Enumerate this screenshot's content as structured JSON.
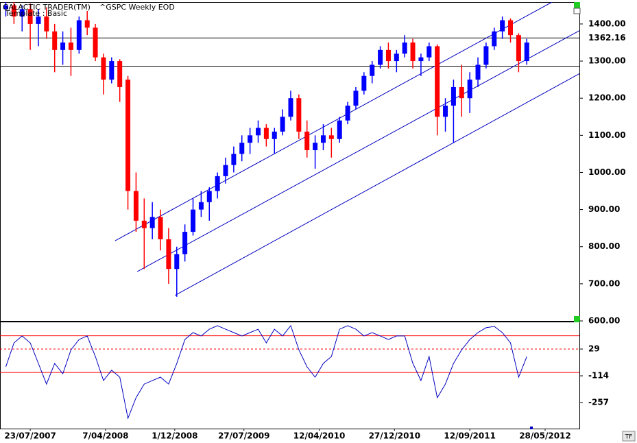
{
  "chart_data": {
    "type": "candlestick",
    "source": "GALACTIC TRADER(TM)",
    "title": "^GSPC Weekly EOD",
    "subtitle": "Template : Basic",
    "button": "TF",
    "up_color": "#0000ff",
    "down_color": "#ff0000",
    "x": [
      "30/04/2007",
      "28/05/2007",
      "25/06/2007",
      "23/07/2007",
      "20/08/2007",
      "17/09/2007",
      "15/10/2007",
      "12/11/2007",
      "10/12/2007",
      "07/01/2008",
      "04/02/2008",
      "03/03/2008",
      "31/03/2008",
      "28/04/2008",
      "26/05/2008",
      "23/06/2008",
      "21/07/2008",
      "18/08/2008",
      "15/09/2008",
      "13/10/2008",
      "10/11/2008",
      "08/12/2008",
      "05/01/2009",
      "02/02/2009",
      "02/03/2009",
      "30/03/2009",
      "27/04/2009",
      "25/05/2009",
      "22/06/2009",
      "20/07/2009",
      "17/08/2009",
      "14/09/2009",
      "12/10/2009",
      "09/11/2009",
      "07/12/2009",
      "04/01/2010",
      "01/02/2010",
      "01/03/2010",
      "29/03/2010",
      "26/04/2010",
      "24/05/2010",
      "21/06/2010",
      "19/07/2010",
      "16/08/2010",
      "13/09/2010",
      "11/10/2010",
      "08/11/2010",
      "06/12/2010",
      "03/01/2011",
      "31/01/2011",
      "28/02/2011",
      "28/03/2011",
      "25/04/2011",
      "23/05/2011",
      "20/06/2011",
      "18/07/2011",
      "15/08/2011",
      "12/09/2011",
      "10/10/2011",
      "07/11/2011",
      "05/12/2011",
      "02/01/2012",
      "30/01/2012",
      "27/02/2012",
      "26/03/2012"
    ],
    "open": [
      1440,
      1450,
      1420,
      1440,
      1400,
      1420,
      1380,
      1330,
      1350,
      1330,
      1410,
      1390,
      1310,
      1250,
      1300,
      1250,
      950,
      870,
      850,
      880,
      820,
      740,
      780,
      840,
      900,
      920,
      950,
      990,
      1020,
      1050,
      1080,
      1100,
      1120,
      1090,
      1110,
      1150,
      1200,
      1110,
      1060,
      1080,
      1100,
      1090,
      1140,
      1180,
      1220,
      1260,
      1290,
      1330,
      1300,
      1320,
      1350,
      1300,
      1310,
      1340,
      1150,
      1180,
      1230,
      1200,
      1250,
      1290,
      1340,
      1380,
      1410,
      1370,
      1300
    ],
    "high": [
      1470,
      1475,
      1450,
      1455,
      1440,
      1445,
      1400,
      1380,
      1390,
      1420,
      1435,
      1400,
      1320,
      1310,
      1305,
      1260,
      1000,
      930,
      920,
      900,
      850,
      800,
      860,
      930,
      950,
      960,
      1000,
      1040,
      1070,
      1100,
      1120,
      1140,
      1130,
      1120,
      1170,
      1220,
      1210,
      1140,
      1100,
      1130,
      1120,
      1150,
      1190,
      1230,
      1270,
      1300,
      1340,
      1350,
      1330,
      1370,
      1360,
      1320,
      1350,
      1345,
      1200,
      1250,
      1290,
      1270,
      1310,
      1350,
      1390,
      1420,
      1415,
      1375,
      1360
    ],
    "low": [
      1420,
      1400,
      1380,
      1330,
      1340,
      1360,
      1270,
      1290,
      1260,
      1320,
      1370,
      1300,
      1210,
      1240,
      1190,
      900,
      840,
      740,
      820,
      790,
      700,
      665,
      760,
      830,
      880,
      870,
      930,
      970,
      1000,
      1030,
      1050,
      1080,
      1070,
      1050,
      1100,
      1140,
      1090,
      1040,
      1010,
      1060,
      1040,
      1080,
      1130,
      1170,
      1210,
      1240,
      1280,
      1280,
      1270,
      1310,
      1280,
      1260,
      1300,
      1100,
      1110,
      1080,
      1150,
      1160,
      1230,
      1280,
      1330,
      1360,
      1350,
      1270,
      1290
    ],
    "close": [
      1450,
      1420,
      1440,
      1400,
      1420,
      1380,
      1330,
      1350,
      1330,
      1410,
      1390,
      1310,
      1250,
      1300,
      1230,
      950,
      870,
      850,
      880,
      820,
      740,
      780,
      840,
      900,
      920,
      950,
      990,
      1020,
      1050,
      1080,
      1100,
      1120,
      1090,
      1110,
      1150,
      1200,
      1110,
      1060,
      1080,
      1100,
      1090,
      1140,
      1180,
      1220,
      1260,
      1290,
      1330,
      1300,
      1320,
      1350,
      1300,
      1310,
      1340,
      1150,
      1180,
      1230,
      1200,
      1250,
      1290,
      1340,
      1380,
      1410,
      1370,
      1300,
      1350
    ],
    "xlim": [
      "10/04/2007",
      "23/09/2012"
    ],
    "xticks": [
      "23/07/2007",
      "7/04/2008",
      "1/12/2008",
      "27/07/2009",
      "12/04/2010",
      "27/12/2010",
      "12/09/2011",
      "28/05/2012"
    ],
    "ylim": [
      600,
      1459
    ],
    "yticks": [
      {
        "value": 600,
        "label": "600.00"
      },
      {
        "value": 700,
        "label": "700.00"
      },
      {
        "value": 800,
        "label": "800.00"
      },
      {
        "value": 900,
        "label": "900.00"
      },
      {
        "value": 1000,
        "label": "1000.00"
      },
      {
        "value": 1100,
        "label": "1100.00"
      },
      {
        "value": 1200,
        "label": "1200.00"
      },
      {
        "value": 1300,
        "label": "1300.00"
      },
      {
        "value": 1400,
        "label": "1400.00"
      }
    ],
    "last_price": 1362.16,
    "levels": [
      1286
    ],
    "level_color": "#000000",
    "trendline_color": "#0000c0",
    "trendlines": [
      {
        "x": [
          "10/05/2008",
          "21/06/2012"
        ],
        "y": [
          816,
          1459
        ]
      },
      {
        "x": [
          "25/07/2008",
          "23/09/2012"
        ],
        "y": [
          733,
          1382
        ]
      },
      {
        "x": [
          "02/12/2008",
          "23/09/2012"
        ],
        "y": [
          669,
          1266
        ]
      }
    ],
    "indicator": {
      "type": "line",
      "color": "#0000c0",
      "values": [
        -66,
        62,
        99,
        62,
        -48,
        -158,
        -48,
        -103,
        25,
        80,
        99,
        -11,
        -139,
        -84,
        -121,
        -341,
        -231,
        -158,
        -139,
        -121,
        -158,
        -48,
        80,
        117,
        99,
        135,
        154,
        135,
        117,
        99,
        117,
        135,
        62,
        135,
        99,
        154,
        25,
        -66,
        -121,
        -48,
        -11,
        135,
        154,
        135,
        99,
        117,
        99,
        80,
        99,
        99,
        -48,
        -139,
        -11,
        -231,
        -158,
        -48,
        25,
        80,
        117,
        143,
        150,
        117,
        62,
        -121,
        -11
      ],
      "ylim": [
        -396,
        172
      ],
      "yticks": [
        29,
        -114,
        -257
      ],
      "level_color": "#ff0000",
      "levels": [
        {
          "value": 100,
          "style": "solid"
        },
        {
          "value": 29,
          "style": "dashed"
        },
        {
          "value": -96,
          "style": "solid"
        }
      ]
    }
  }
}
